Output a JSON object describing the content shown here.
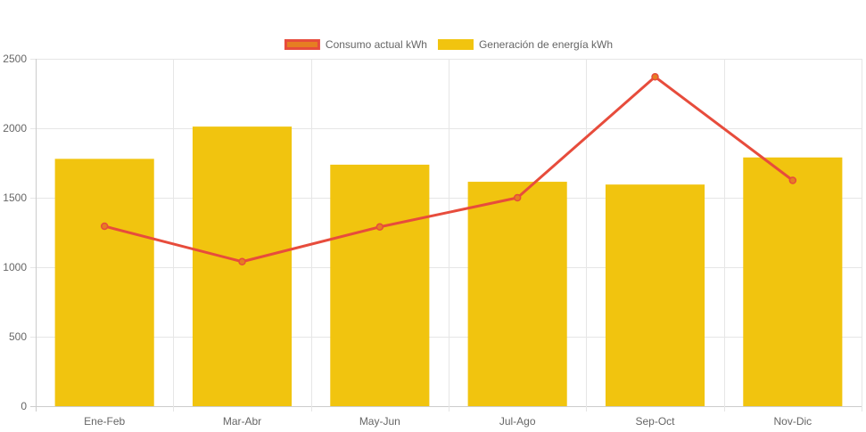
{
  "chart_data": {
    "type": "bar",
    "categories": [
      "Ene-Feb",
      "Mar-Abr",
      "May-Jun",
      "Jul-Ago",
      "Sep-Oct",
      "Nov-Dic"
    ],
    "series": [
      {
        "name": "Generación de energía kWh",
        "type": "bar",
        "color": "#f1c40f",
        "values": [
          1780,
          2012,
          1738,
          1615,
          1595,
          1790
        ]
      },
      {
        "name": "Consumo actual kWh",
        "type": "line",
        "color": "#e74c3c",
        "fill_color": "#e67e22",
        "values": [
          1295,
          1040,
          1290,
          1500,
          2370,
          1625
        ]
      }
    ],
    "ylim": [
      0,
      2500
    ],
    "yticks": [
      0,
      500,
      1000,
      1500,
      2000,
      2500
    ],
    "grid": true,
    "legend": "top-center",
    "title": "",
    "xlabel": "",
    "ylabel": ""
  }
}
